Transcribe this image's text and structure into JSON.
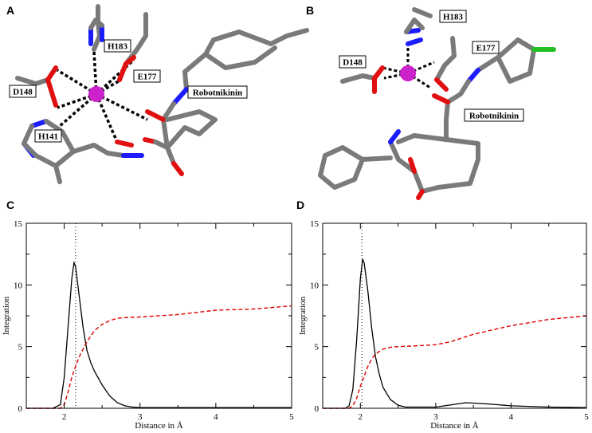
{
  "panels": {
    "A": {
      "letter": "A",
      "labels": [
        "H183",
        "E177",
        "D148",
        "Robotnikinin",
        "H141"
      ]
    },
    "B": {
      "letter": "B",
      "labels": [
        "H183",
        "E177",
        "D148",
        "Robotnikinin"
      ]
    }
  },
  "colors": {
    "bond_carbon": "#7a7a7a",
    "bond_oxygen": "#e01010",
    "bond_nitrogen": "#1c1cff",
    "bond_chlorine": "#22c022",
    "metal_ion": "#cc22cc",
    "coordination": "#000000",
    "rdf_line": "#000000",
    "integration_line": "#e00000"
  },
  "chart_data": [
    {
      "panel": "C",
      "type": "line",
      "xlabel": "Distance in Å",
      "ylabel": "Integration",
      "xlim": [
        1.5,
        5.0
      ],
      "ylim": [
        0,
        15
      ],
      "xticks": [
        2,
        3,
        4,
        5
      ],
      "yticks": [
        0,
        5,
        10,
        15
      ],
      "reference_line_x": 2.15,
      "series": [
        {
          "style": "solid",
          "x": [
            1.5,
            1.85,
            1.95,
            2.0,
            2.05,
            2.1,
            2.13,
            2.15,
            2.2,
            2.25,
            2.3,
            2.35,
            2.4,
            2.5,
            2.6,
            2.7,
            2.8,
            2.9,
            3.0,
            3.5,
            4.0,
            4.5,
            5.0
          ],
          "values": [
            0,
            0,
            0.3,
            2.5,
            6.5,
            10.5,
            11.8,
            11.5,
            9.0,
            6.5,
            4.7,
            3.7,
            3.0,
            1.9,
            1.0,
            0.45,
            0.2,
            0.1,
            0.05,
            0.05,
            0.05,
            0.05,
            0.05
          ]
        },
        {
          "style": "dashed",
          "x": [
            1.5,
            1.95,
            2.0,
            2.05,
            2.1,
            2.15,
            2.2,
            2.3,
            2.4,
            2.5,
            2.6,
            2.7,
            2.8,
            3.0,
            3.5,
            4.0,
            4.5,
            5.0
          ],
          "values": [
            0,
            0,
            0.3,
            1.3,
            2.5,
            3.4,
            4.2,
            5.4,
            6.3,
            6.8,
            7.1,
            7.3,
            7.35,
            7.4,
            7.6,
            7.95,
            8.05,
            8.3
          ]
        }
      ]
    },
    {
      "panel": "D",
      "type": "line",
      "xlabel": "Distance in Å",
      "ylabel": "Integration",
      "xlim": [
        1.5,
        5.0
      ],
      "ylim": [
        0,
        15
      ],
      "xticks": [
        2,
        3,
        4,
        5
      ],
      "yticks": [
        0,
        5,
        10,
        15
      ],
      "reference_line_x": 2.02,
      "series": [
        {
          "style": "solid",
          "x": [
            1.5,
            1.8,
            1.85,
            1.9,
            1.95,
            2.0,
            2.03,
            2.05,
            2.1,
            2.15,
            2.2,
            2.25,
            2.3,
            2.4,
            2.5,
            2.6,
            3.0,
            3.4,
            3.7,
            4.0,
            4.5,
            5.0
          ],
          "values": [
            0,
            0,
            0.2,
            1.5,
            5.5,
            10.5,
            12.1,
            11.8,
            9.5,
            6.5,
            4.2,
            2.8,
            1.7,
            0.7,
            0.25,
            0.1,
            0.1,
            0.45,
            0.35,
            0.2,
            0.1,
            0.05
          ]
        },
        {
          "style": "dashed",
          "x": [
            1.5,
            1.85,
            1.9,
            1.95,
            2.0,
            2.05,
            2.1,
            2.15,
            2.2,
            2.3,
            2.4,
            2.5,
            2.7,
            3.0,
            3.2,
            3.5,
            4.0,
            4.5,
            5.0
          ],
          "values": [
            0,
            0,
            0.2,
            0.8,
            1.8,
            2.6,
            3.4,
            4.0,
            4.4,
            4.8,
            4.95,
            5.0,
            5.05,
            5.15,
            5.4,
            6.0,
            6.7,
            7.2,
            7.5
          ]
        }
      ]
    }
  ]
}
